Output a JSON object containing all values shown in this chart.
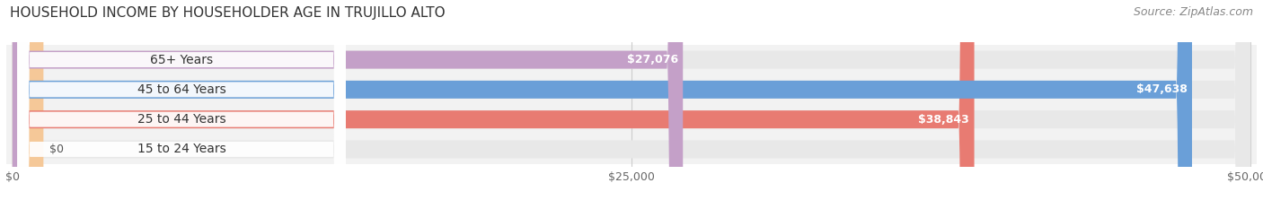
{
  "title": "HOUSEHOLD INCOME BY HOUSEHOLDER AGE IN TRUJILLO ALTO",
  "source": "Source: ZipAtlas.com",
  "categories": [
    "15 to 24 Years",
    "25 to 44 Years",
    "45 to 64 Years",
    "65+ Years"
  ],
  "values": [
    0,
    38843,
    47638,
    27076
  ],
  "bar_colors": [
    "#f5c898",
    "#e87b72",
    "#6a9fd8",
    "#c4a0c8"
  ],
  "bar_bg_color": "#e8e8e8",
  "xlim": [
    0,
    50000
  ],
  "xticks": [
    0,
    25000,
    50000
  ],
  "xtick_labels": [
    "$0",
    "$25,000",
    "$50,000"
  ],
  "value_labels": [
    "$0",
    "$38,843",
    "$47,638",
    "$27,076"
  ],
  "title_fontsize": 11,
  "source_fontsize": 9,
  "label_fontsize": 10,
  "value_fontsize": 9,
  "tick_fontsize": 9,
  "background_color": "#ffffff"
}
